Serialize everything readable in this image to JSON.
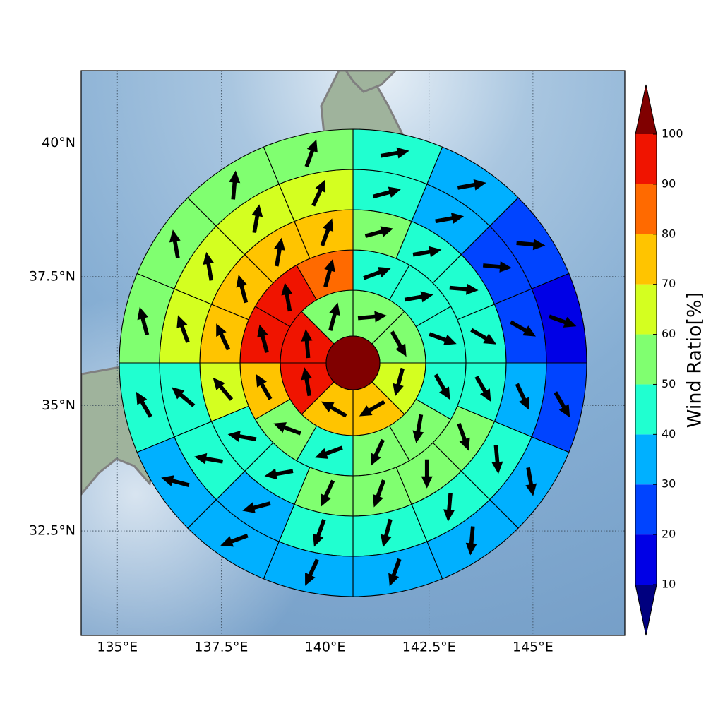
{
  "chart_data": {
    "type": "map",
    "xlim": [
      134.13,
      147.21
    ],
    "ylim": [
      30.36,
      41.32
    ],
    "projection": "mercator",
    "grid": true,
    "xticks": [
      {
        "value": 135,
        "label": "135°E"
      },
      {
        "value": 137.5,
        "label": "137.5°E"
      },
      {
        "value": 140,
        "label": "140°E"
      },
      {
        "value": 142.5,
        "label": "142.5°E"
      },
      {
        "value": 145,
        "label": "145°E"
      }
    ],
    "yticks": [
      {
        "value": 32.5,
        "label": "32.5°N"
      },
      {
        "value": 35,
        "label": "35°N"
      },
      {
        "value": 37.5,
        "label": "37.5°N"
      },
      {
        "value": 40,
        "label": "40°N"
      }
    ],
    "center_value": 100,
    "rings": [
      {
        "values": [
          55,
          55,
          65,
          75,
          75,
          95,
          95,
          55
        ],
        "directions": [
          85,
          150,
          195,
          240,
          300,
          350,
          355,
          15
        ]
      },
      {
        "values": [
          45,
          45,
          45,
          45,
          55,
          55,
          45,
          55,
          75,
          95,
          95,
          85
        ],
        "directions": [
          70,
          80,
          110,
          150,
          190,
          205,
          250,
          290,
          330,
          345,
          350,
          15
        ]
      },
      {
        "values": [
          55,
          45,
          45,
          45,
          45,
          55,
          55,
          55,
          55,
          45,
          45,
          65,
          75,
          75,
          75,
          75
        ],
        "directions": [
          75,
          80,
          95,
          120,
          150,
          160,
          180,
          200,
          205,
          260,
          280,
          320,
          335,
          345,
          10,
          20
        ]
      },
      {
        "values": [
          45,
          35,
          25,
          25,
          35,
          45,
          45,
          45,
          45,
          35,
          45,
          45,
          65,
          65,
          65,
          65
        ],
        "directions": [
          75,
          80,
          95,
          120,
          155,
          175,
          185,
          195,
          200,
          255,
          280,
          310,
          340,
          350,
          10,
          25
        ]
      },
      {
        "values": [
          45,
          35,
          25,
          15,
          25,
          35,
          35,
          35,
          35,
          35,
          35,
          45,
          55,
          55,
          55,
          55
        ],
        "directions": [
          80,
          80,
          95,
          110,
          150,
          170,
          185,
          200,
          205,
          250,
          285,
          330,
          345,
          350,
          5,
          20
        ]
      }
    ],
    "colorbar": {
      "label": "Wind Ratio[%]",
      "ticks": [
        10,
        20,
        30,
        40,
        50,
        60,
        70,
        80,
        90,
        100
      ],
      "colors": [
        "#00007f",
        "#0000e6",
        "#0044ff",
        "#00b0ff",
        "#20ffd0",
        "#80ff70",
        "#d4ff20",
        "#ffc400",
        "#ff6a00",
        "#f01400",
        "#800000"
      ],
      "extend": "both"
    },
    "arrow_color": "#000000"
  }
}
